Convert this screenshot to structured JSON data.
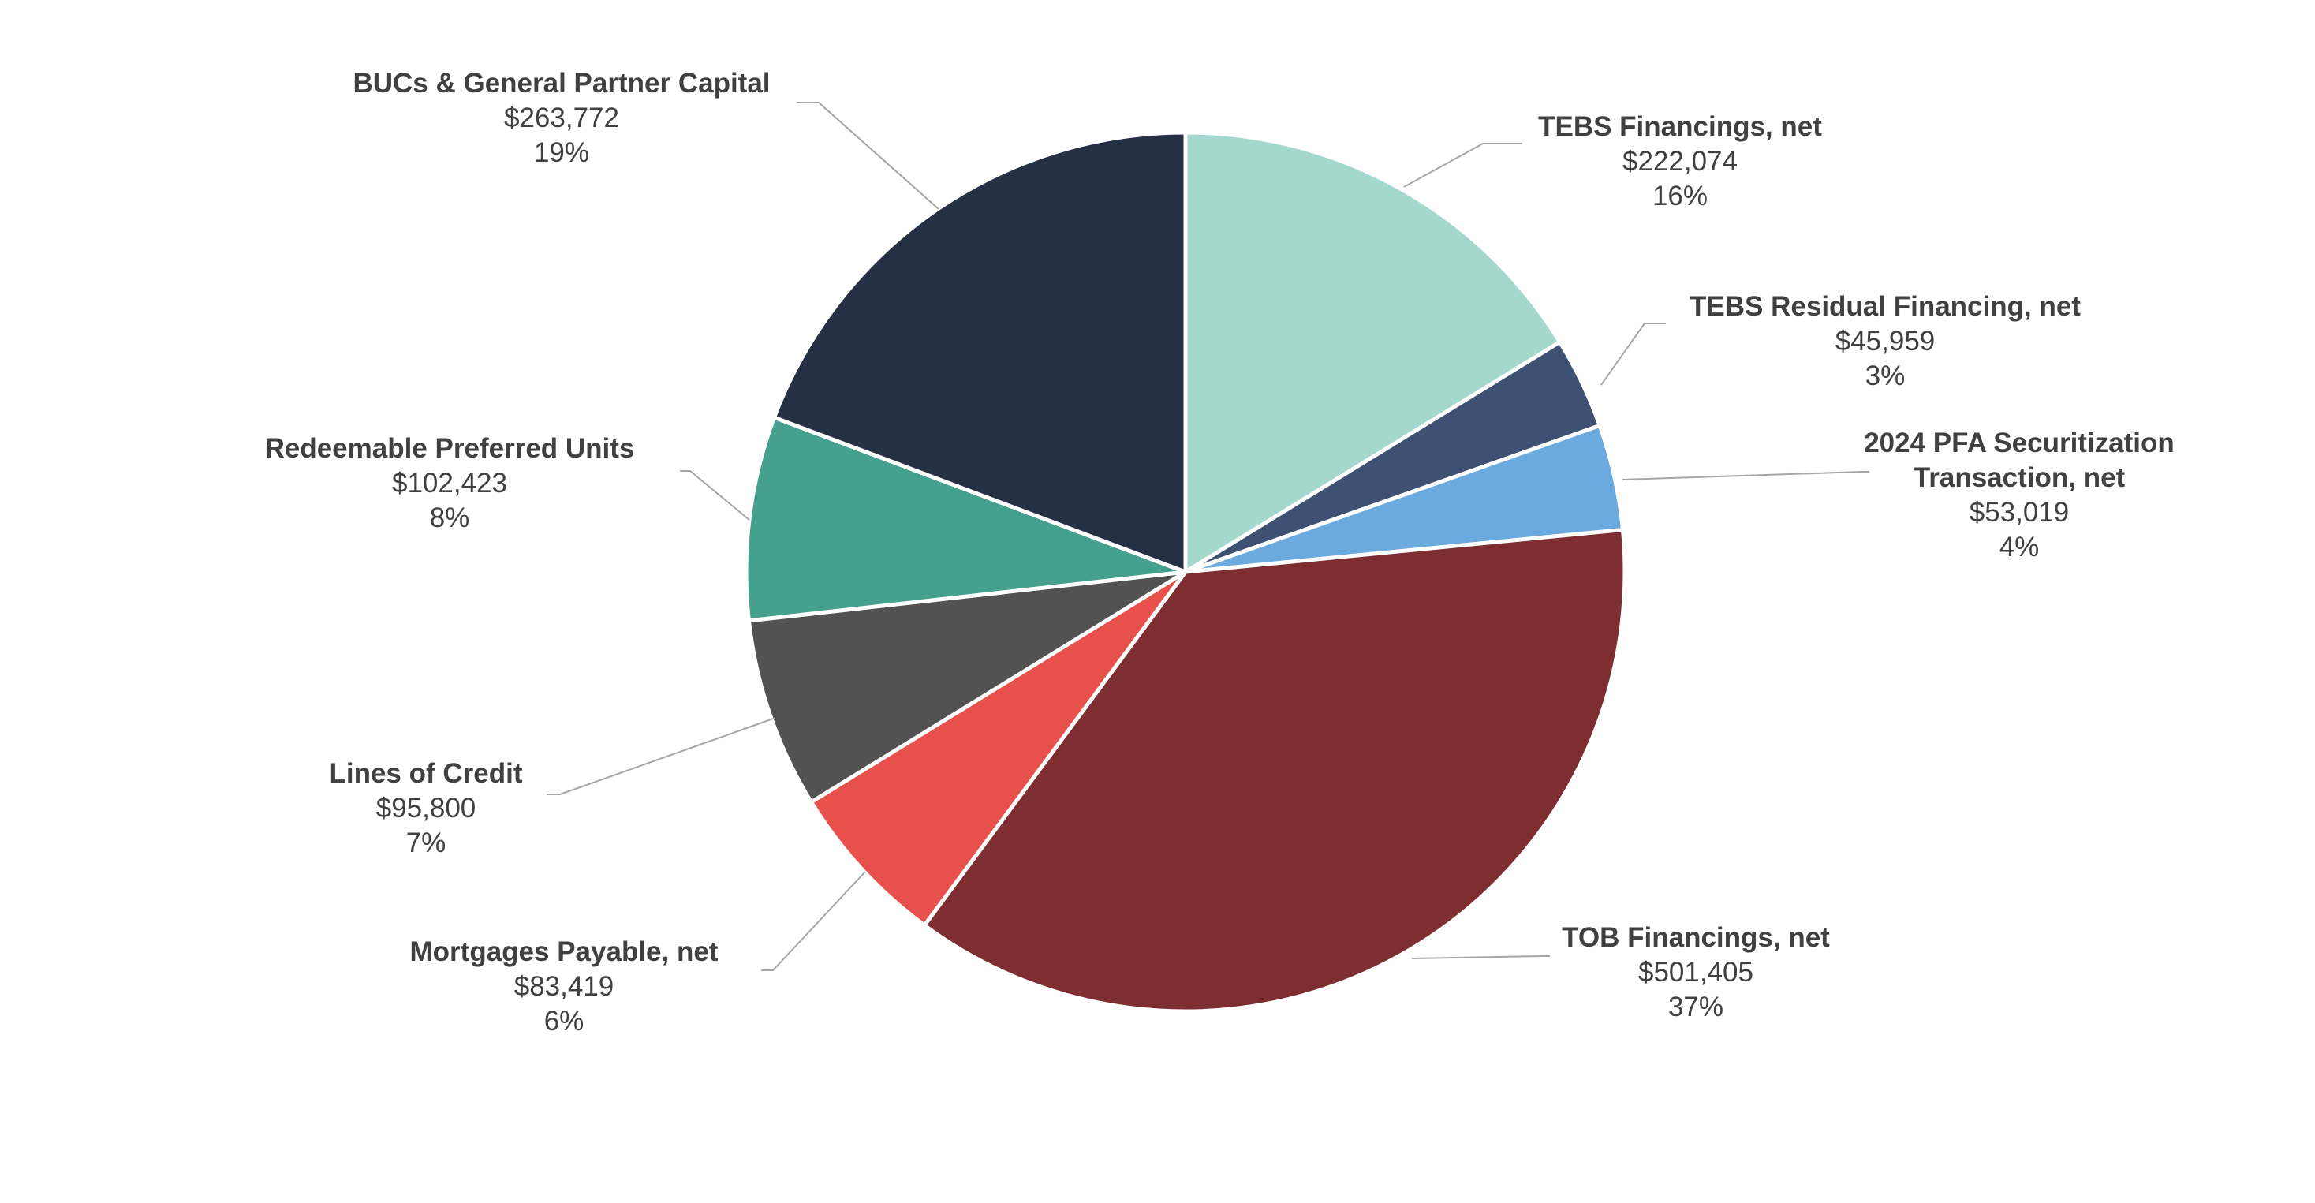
{
  "chart_data": {
    "type": "pie",
    "title": "",
    "slices": [
      {
        "name": "TEBS Financings, net",
        "value": 222074,
        "value_label": "$222,074",
        "percent_label": "16%",
        "color": "#a4d8cf"
      },
      {
        "name": "TEBS Residual Financing, net",
        "value": 45959,
        "value_label": "$45,959",
        "percent_label": "3%",
        "color": "#3e5172"
      },
      {
        "name": "2024 PFA Securitization Transaction, net",
        "value": 53019,
        "value_label": "$53,019",
        "percent_label": "4%",
        "color": "#6aaadf"
      },
      {
        "name": "TOB Financings, net",
        "value": 501405,
        "value_label": "$501,405",
        "percent_label": "37%",
        "color": "#7e2e31"
      },
      {
        "name": "Mortgages Payable, net",
        "value": 83419,
        "value_label": "$83,419",
        "percent_label": "6%",
        "color": "#e8504c"
      },
      {
        "name": "Lines of Credit",
        "value": 95800,
        "value_label": "$95,800",
        "percent_label": "7%",
        "color": "#525252"
      },
      {
        "name": "Redeemable Preferred Units",
        "value": 102423,
        "value_label": "$102,423",
        "percent_label": "8%",
        "color": "#45a08e"
      },
      {
        "name": "BUCs & General Partner Capital",
        "value": 263772,
        "value_label": "$263,772",
        "percent_label": "19%",
        "color": "#263045"
      }
    ]
  }
}
